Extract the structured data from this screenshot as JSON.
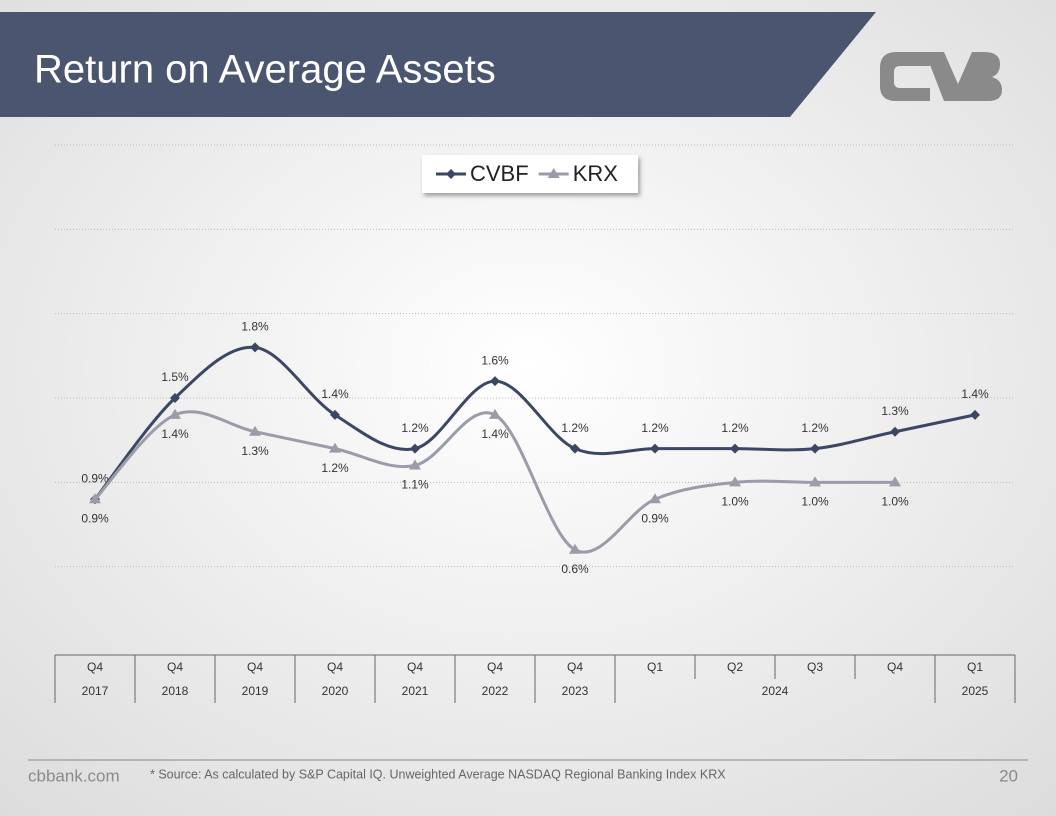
{
  "chart_data": {
    "type": "line",
    "title": "Return on Average Assets",
    "categories": [
      "Q4",
      "Q4",
      "Q4",
      "Q4",
      "Q4",
      "Q4",
      "Q4",
      "Q1",
      "Q2",
      "Q3",
      "Q4",
      "Q1"
    ],
    "x_groups": [
      {
        "label": "2017",
        "size": 1
      },
      {
        "label": "2018",
        "size": 1
      },
      {
        "label": "2019",
        "size": 1
      },
      {
        "label": "2020",
        "size": 1
      },
      {
        "label": "2021",
        "size": 1
      },
      {
        "label": "2022",
        "size": 1
      },
      {
        "label": "2023",
        "size": 1
      },
      {
        "label": "2024",
        "size": 4
      },
      {
        "label": "2025",
        "size": 1
      }
    ],
    "series": [
      {
        "name": "CVBF",
        "color": "#3c4763",
        "marker": "diamond",
        "label_position": "above",
        "values": [
          0.9,
          1.5,
          1.8,
          1.4,
          1.2,
          1.6,
          1.2,
          1.2,
          1.2,
          1.2,
          1.3,
          1.4
        ],
        "value_labels": [
          "0.9%",
          "1.5%",
          "1.8%",
          "1.4%",
          "1.2%",
          "1.6%",
          "1.2%",
          "1.2%",
          "1.2%",
          "1.2%",
          "1.3%",
          "1.4%"
        ]
      },
      {
        "name": "KRX",
        "color": "#9a9ca9",
        "marker": "triangle",
        "label_position": "below",
        "values": [
          0.9,
          1.4,
          1.3,
          1.2,
          1.1,
          1.4,
          0.6,
          0.9,
          1.0,
          1.0,
          1.0,
          null
        ],
        "value_labels": [
          "0.9%",
          "1.4%",
          "1.3%",
          "1.2%",
          "1.1%",
          "1.4%",
          "0.6%",
          "0.9%",
          "1.0%",
          "1.0%",
          "1.0%",
          null
        ]
      }
    ],
    "ylim": [
      0,
      3
    ],
    "yticks": [
      0.5,
      1,
      1.5,
      2,
      2.5,
      3
    ],
    "grid": true,
    "smooth": true,
    "legend": "top",
    "footer": {
      "site": "cbbank.com",
      "source": "* Source: As calculated by S&P Capital IQ. Unweighted Average NASDAQ Regional Banking Index KRX",
      "page": "20"
    }
  }
}
